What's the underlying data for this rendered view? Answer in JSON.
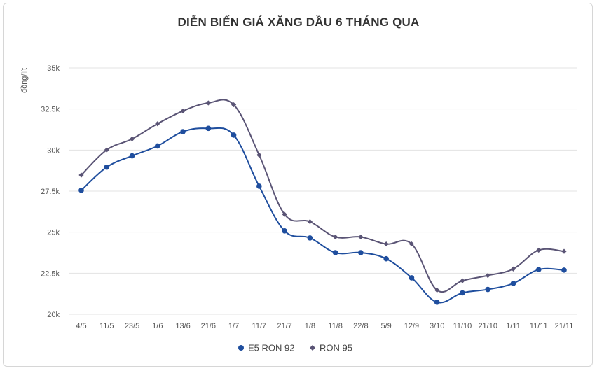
{
  "chart_data": {
    "type": "line",
    "title": "DIỄN BIẾN GIÁ XĂNG DẦU 6 THÁNG QUA",
    "ylabel": "đồng/lít",
    "xlabel": "",
    "categories": [
      "4/5",
      "11/5",
      "23/5",
      "1/6",
      "13/6",
      "21/6",
      "1/7",
      "11/7",
      "21/7",
      "1/8",
      "11/8",
      "22/8",
      "5/9",
      "12/9",
      "3/10",
      "11/10",
      "21/10",
      "1/11",
      "11/11",
      "21/11"
    ],
    "ylim": [
      20000,
      35000
    ],
    "yticks": [
      20000,
      22500,
      25000,
      27500,
      30000,
      32500,
      35000
    ],
    "ytick_labels": [
      "20k",
      "22.5k",
      "25k",
      "27.5k",
      "30k",
      "32.5k",
      "35k"
    ],
    "grid": true,
    "legend_position": "bottom-center",
    "series": [
      {
        "name": "E5 RON 92",
        "color": "#1f4e9e",
        "marker": "circle",
        "values": [
          27550,
          28960,
          29650,
          30250,
          31120,
          31320,
          30910,
          27800,
          25080,
          24650,
          23750,
          23750,
          23380,
          22220,
          20730,
          21300,
          21510,
          21880,
          22720,
          22690
        ]
      },
      {
        "name": "RON 95",
        "color": "#5a5475",
        "marker": "diamond",
        "values": [
          28480,
          30010,
          30680,
          31600,
          32380,
          32870,
          32760,
          29700,
          26090,
          25640,
          24710,
          24710,
          24280,
          24280,
          21470,
          22040,
          22360,
          22760,
          23900,
          23830
        ]
      }
    ]
  }
}
